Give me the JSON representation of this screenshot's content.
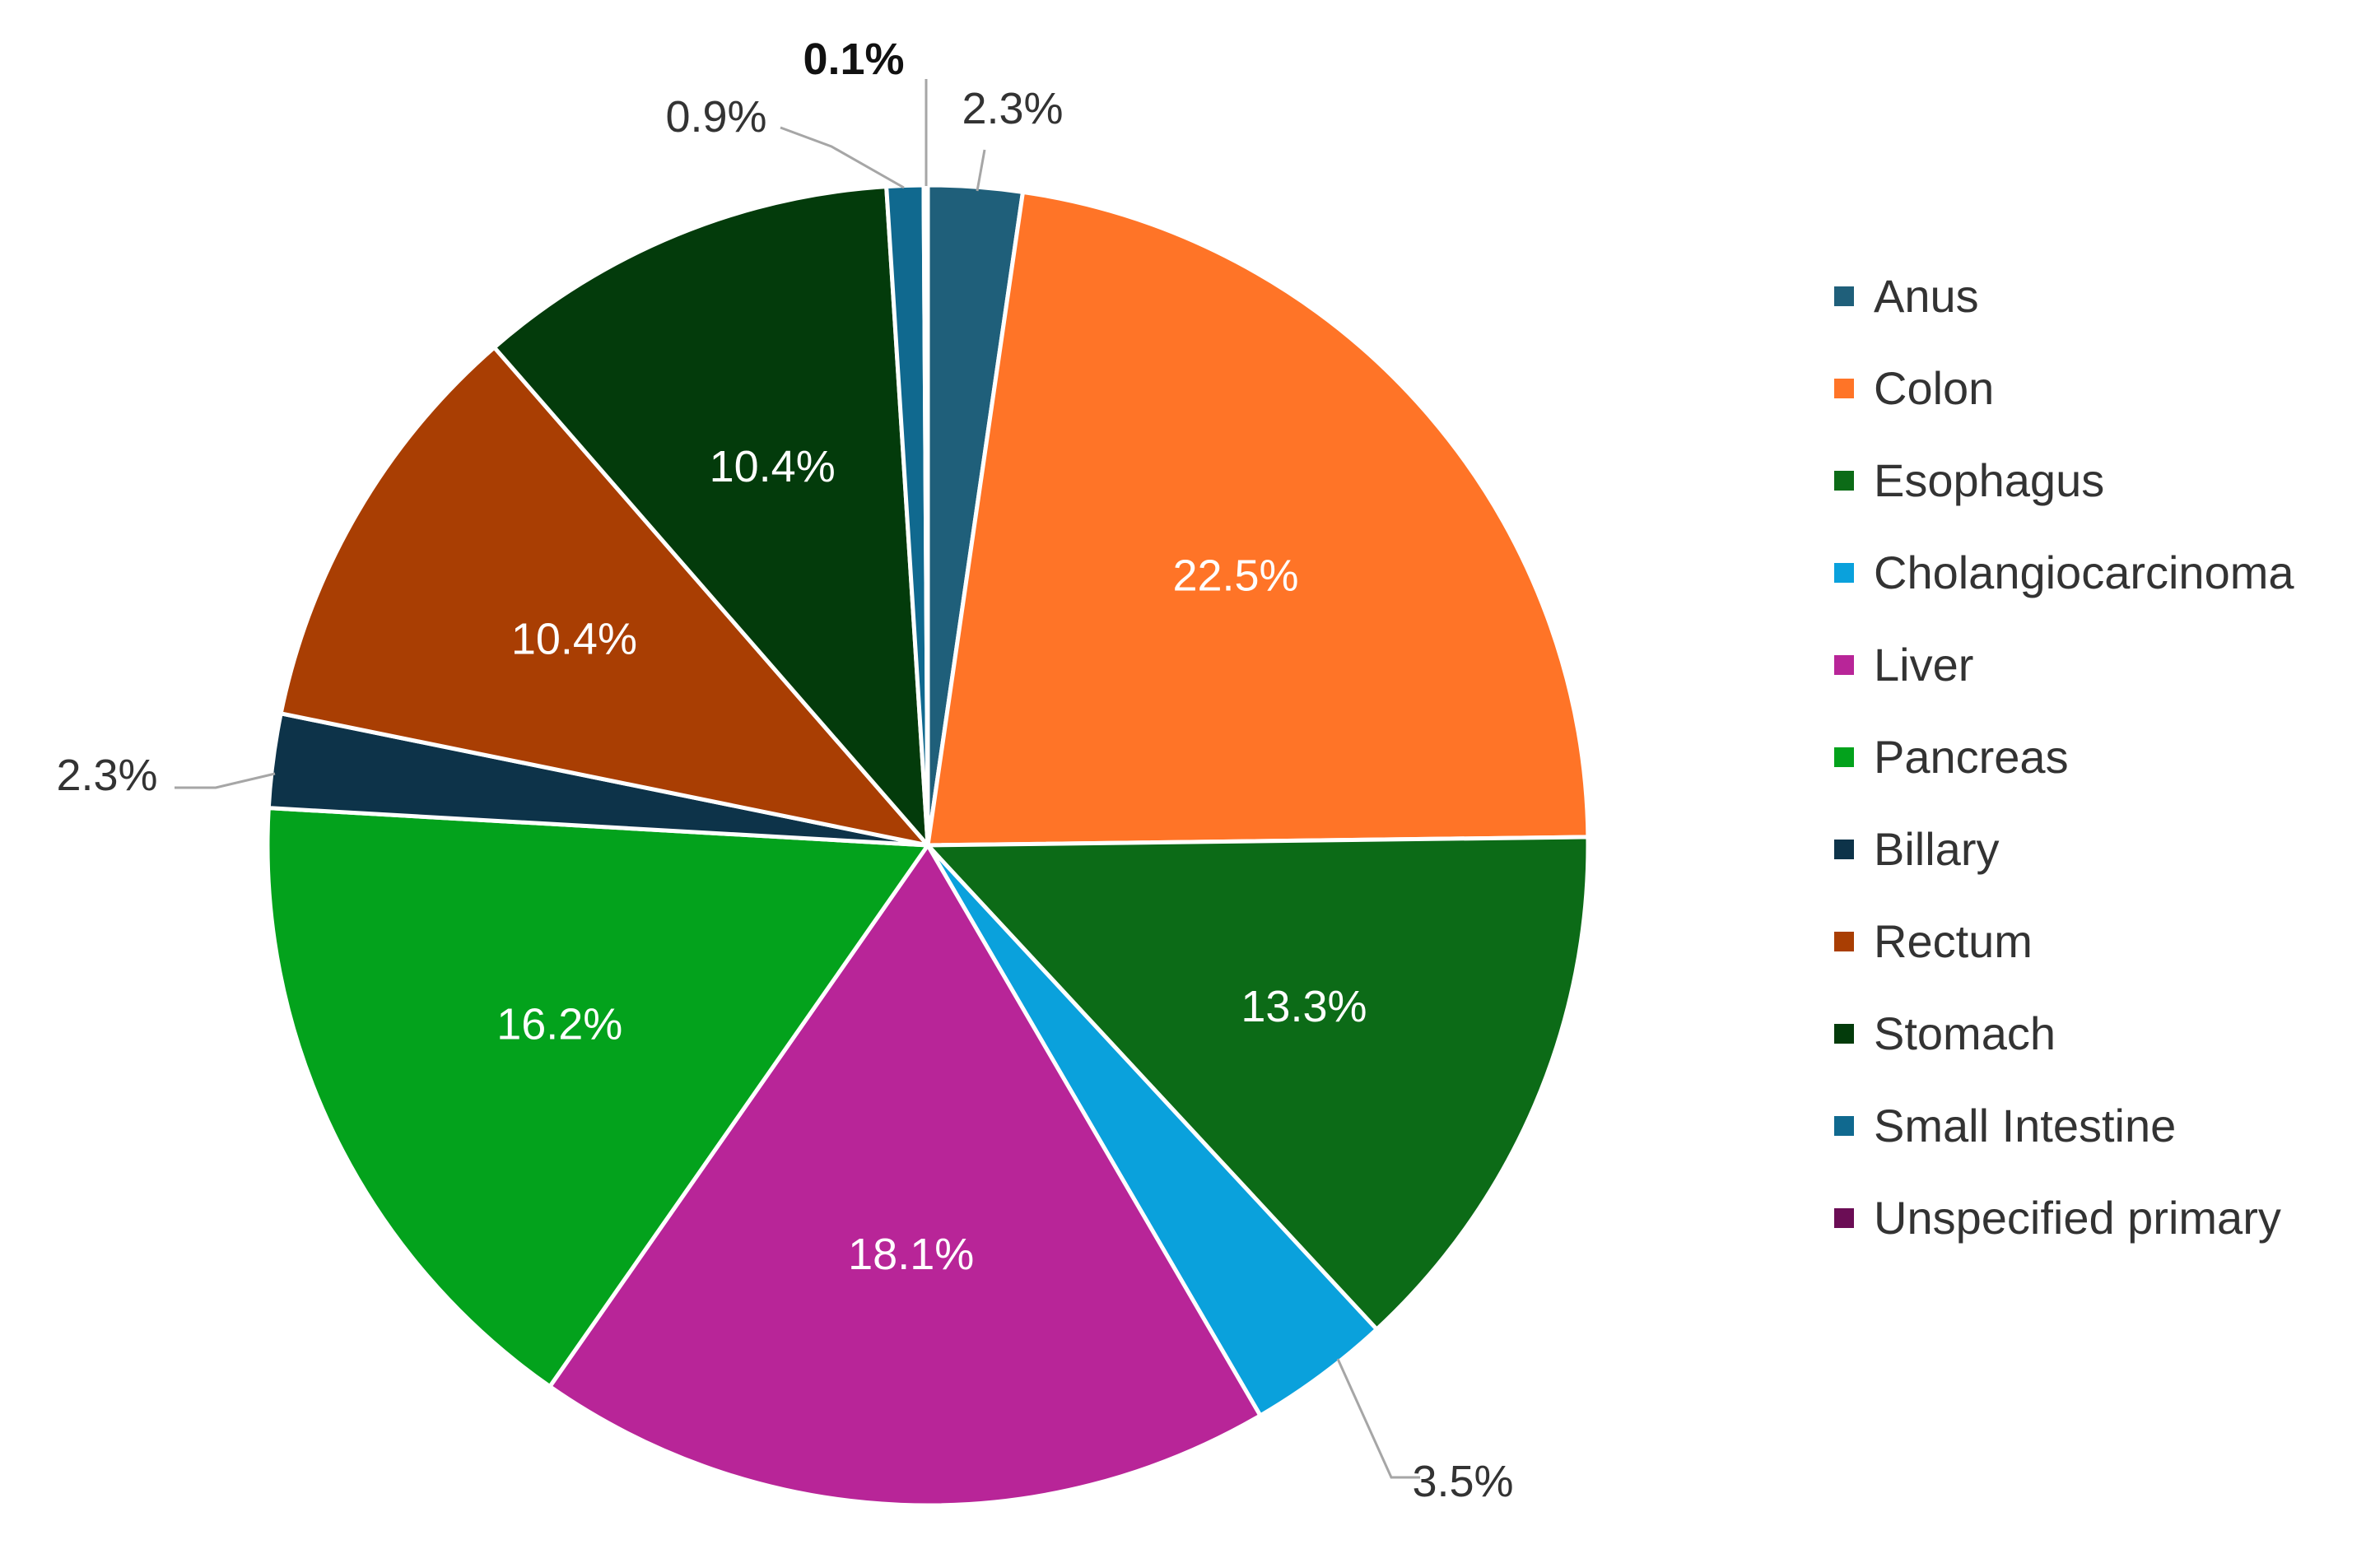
{
  "chart_data": {
    "type": "pie",
    "title": "",
    "legend_position": "right",
    "slices": [
      {
        "name": "Anus",
        "value": 2.3,
        "label": "2.3%",
        "color": "#1f5f7a",
        "label_inside": false
      },
      {
        "name": "Colon",
        "value": 22.5,
        "label": "22.5%",
        "color": "#ff7427",
        "label_inside": true
      },
      {
        "name": "Esophagus",
        "value": 13.3,
        "label": "13.3%",
        "color": "#0c6b17",
        "label_inside": true
      },
      {
        "name": "Cholangiocarcinoma",
        "value": 3.5,
        "label": "3.5%",
        "color": "#0aa1dc",
        "label_inside": false
      },
      {
        "name": "Liver",
        "value": 18.1,
        "label": "18.1%",
        "color": "#b82598",
        "label_inside": true
      },
      {
        "name": "Pancreas",
        "value": 16.2,
        "label": "16.2%",
        "color": "#03a21c",
        "label_inside": true
      },
      {
        "name": "Billary",
        "value": 2.3,
        "label": "2.3%",
        "color": "#0d3349",
        "label_inside": false
      },
      {
        "name": "Rectum",
        "value": 10.4,
        "label": "10.4%",
        "color": "#a93e03",
        "label_inside": true
      },
      {
        "name": "Stomach",
        "value": 10.4,
        "label": "10.4%",
        "color": "#033b0b",
        "label_inside": true
      },
      {
        "name": "Small Intestine",
        "value": 0.9,
        "label": "0.9%",
        "color": "#10698f",
        "label_inside": false
      },
      {
        "name": "Unspecified primary",
        "value": 0.1,
        "label": "0.1%",
        "color": "#6b0d55",
        "label_inside": false
      }
    ]
  }
}
